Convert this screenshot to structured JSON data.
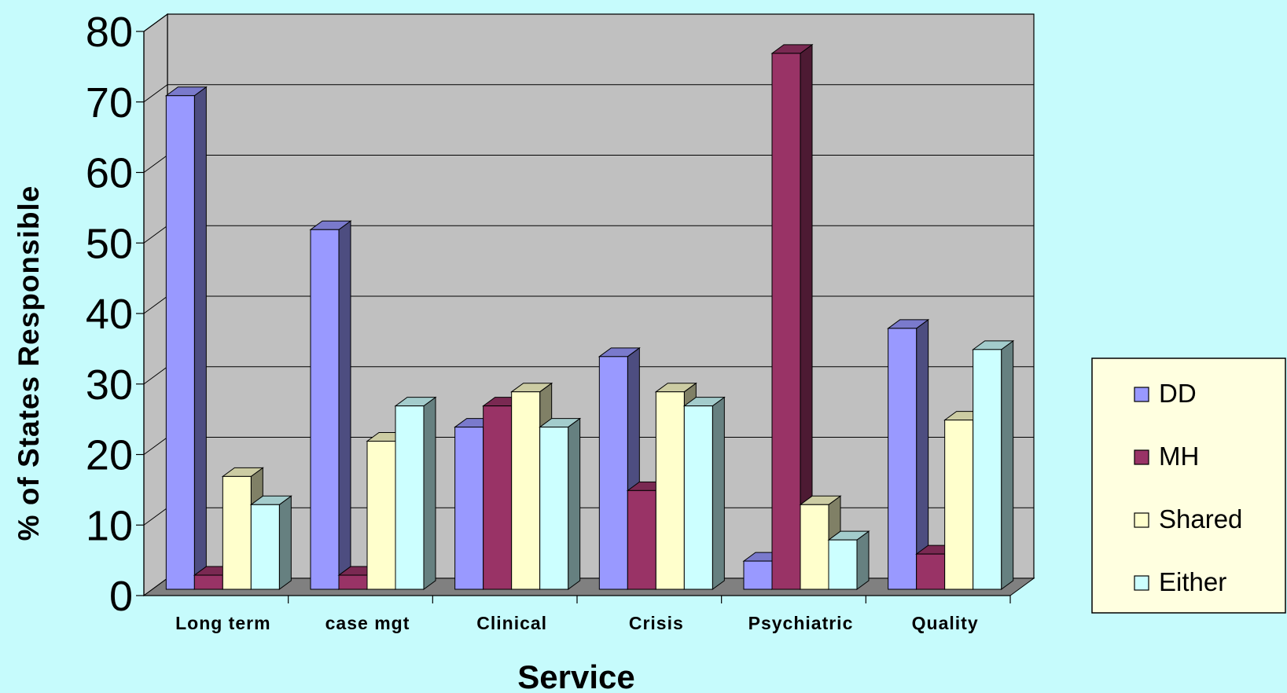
{
  "chart_data": {
    "type": "bar",
    "title": "",
    "xlabel": "Service",
    "ylabel": "% of States Responsible",
    "categories": [
      "Long term",
      "case mgt",
      "Clinical",
      "Crisis",
      "Psychiatric",
      "Quality"
    ],
    "series": [
      {
        "name": "DD",
        "values": [
          70,
          51,
          23,
          33,
          4,
          37
        ]
      },
      {
        "name": "MH",
        "values": [
          2,
          2,
          26,
          14,
          76,
          5
        ]
      },
      {
        "name": "Shared",
        "values": [
          16,
          21,
          28,
          28,
          12,
          24
        ]
      },
      {
        "name": "Either",
        "values": [
          12,
          26,
          23,
          26,
          7,
          34
        ]
      }
    ],
    "ylim": [
      0,
      80
    ],
    "yticks": [
      0,
      10,
      20,
      30,
      40,
      50,
      60,
      70,
      80
    ],
    "grid": true,
    "legend_position": "right",
    "three_d": true
  },
  "colors": {
    "background": "#c6fbfc",
    "plot_back_wall": "#c0c0c0",
    "plot_floor": "#808080",
    "gridline": "#000000",
    "legend_background": "#ffffe0",
    "series": {
      "DD": {
        "front": "#9999ff",
        "side": "#4d4d80",
        "top": "#7a7acc"
      },
      "MH": {
        "front": "#993366",
        "side": "#4d1a33",
        "top": "#7a2952"
      },
      "Shared": {
        "front": "#ffffcc",
        "side": "#808066",
        "top": "#cccca3"
      },
      "Either": {
        "front": "#ccffff",
        "side": "#668080",
        "top": "#a3cccc"
      }
    }
  }
}
